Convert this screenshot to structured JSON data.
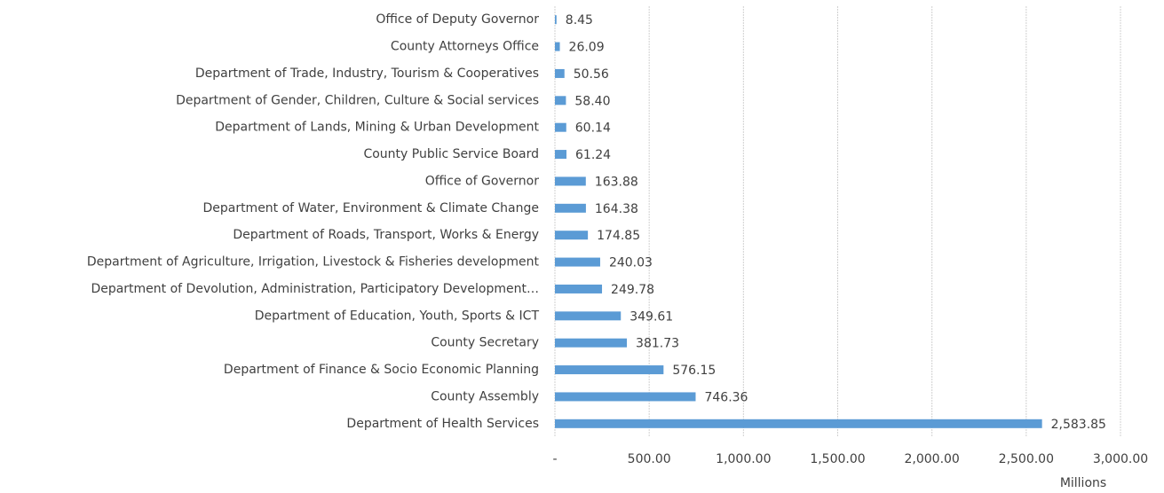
{
  "chart_data": {
    "type": "barh",
    "categories": [
      "Office of Deputy Governor",
      "County Attorneys Office",
      "Department of Trade, Industry, Tourism & Cooperatives",
      "Department of  Gender, Children, Culture  & Social services",
      "Department of Lands, Mining & Urban Development",
      "County Public Service Board",
      "Office of Governor",
      "Department of Water, Environment & Climate Change",
      "Department of Roads, Transport, Works & Energy",
      "Department of Agriculture, Irrigation, Livestock & Fisheries development",
      "Department of Devolution, Administration, Participatory Development…",
      "Department of Education, Youth, Sports & ICT",
      "County Secretary",
      "Department of Finance & Socio Economic Planning",
      "County Assembly",
      "Department of Health Services"
    ],
    "values": [
      8.45,
      26.09,
      50.56,
      58.4,
      60.14,
      61.24,
      163.88,
      164.38,
      174.85,
      240.03,
      249.78,
      349.61,
      381.73,
      576.15,
      746.36,
      2583.85
    ],
    "value_labels": [
      "8.45",
      "26.09",
      "50.56",
      "58.40",
      "60.14",
      "61.24",
      "163.88",
      "164.38",
      "174.85",
      "240.03",
      "249.78",
      "349.61",
      "381.73",
      "576.15",
      "746.36",
      "2,583.85"
    ],
    "color": "#5b9bd5",
    "xlim": [
      0,
      3000
    ],
    "xticks": [
      {
        "value": 0,
        "label": "-"
      },
      {
        "value": 500,
        "label": "500.00"
      },
      {
        "value": 1000,
        "label": "1,000.00"
      },
      {
        "value": 1500,
        "label": "1,500.00"
      },
      {
        "value": 2000,
        "label": "2,000.00"
      },
      {
        "value": 2500,
        "label": "2,500.00"
      },
      {
        "value": 3000,
        "label": "3,000.00"
      }
    ],
    "xlabel": "Millions",
    "grid": true
  }
}
